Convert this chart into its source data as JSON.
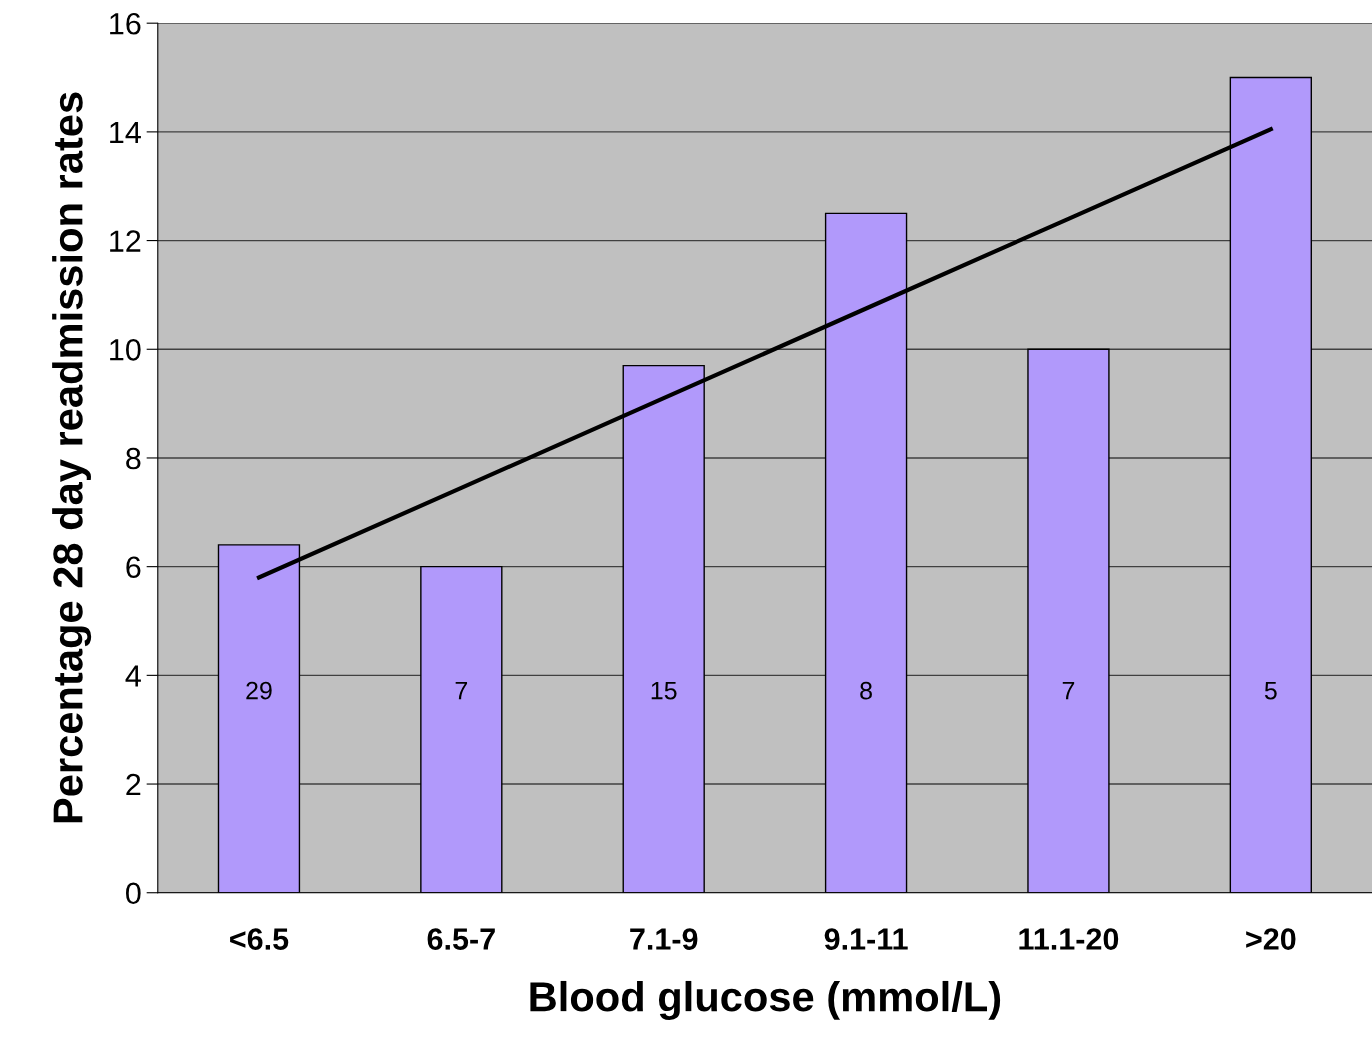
{
  "chart_data": {
    "type": "bar",
    "xlabel": "Blood glucose (mmol/L)",
    "ylabel": "Percentage 28 day readmission rates",
    "categories": [
      "<6.5",
      "6.5-7",
      "7.1-9",
      "9.1-11",
      "11.1-20",
      ">20"
    ],
    "series": [
      {
        "color": "#b199fb",
        "values": [
          6.4,
          6.0,
          9.7,
          12.5,
          10.0,
          15.0
        ]
      },
      {
        "type": "line",
        "color": "#000000",
        "values": [
          5.8,
          7.45,
          9.1,
          10.75,
          12.4,
          14.05
        ]
      }
    ],
    "ylim": [
      0,
      16
    ],
    "yticks": [
      0,
      2,
      4,
      6,
      8,
      10,
      12,
      14,
      16
    ],
    "grid": "y",
    "marker": "none",
    "line_style": "solid",
    "annotations": [
      "29",
      "7",
      "15",
      "8",
      "7",
      "5"
    ]
  }
}
